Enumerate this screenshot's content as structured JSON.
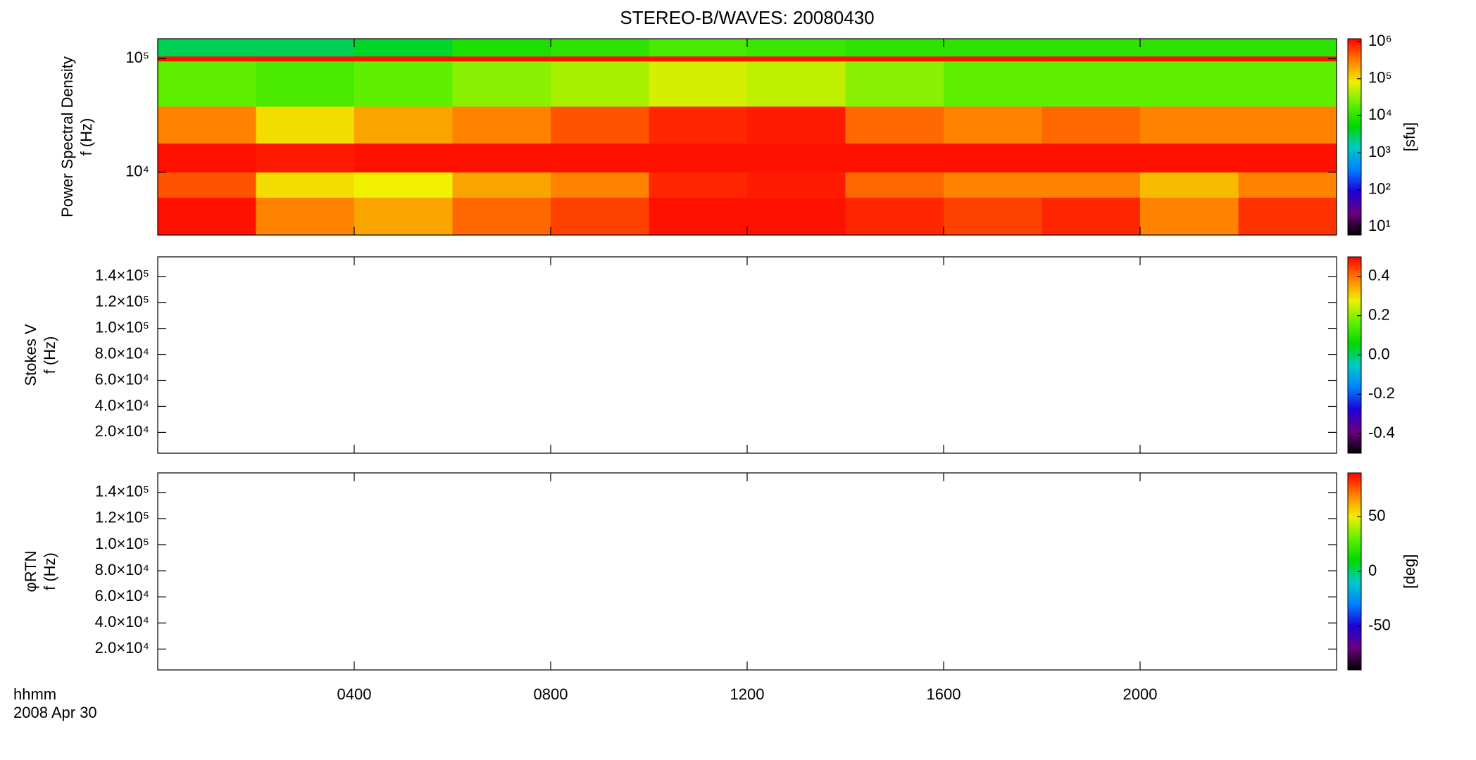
{
  "chart_data": [
    {
      "type": "heatmap",
      "title": "STEREO-B/WAVES: 20080430",
      "ylabel": [
        "Power Spectral Density",
        "f (Hz)"
      ],
      "ylim": [
        2800,
        150000
      ],
      "log_y": true,
      "yticks": [
        {
          "value": 10000,
          "label": "10⁴"
        },
        {
          "value": 100000,
          "label": "10⁵"
        }
      ],
      "colormap": [
        "#000000",
        "#6a0080",
        "#1e00d8",
        "#0080ff",
        "#00c8c8",
        "#00d800",
        "#60f000",
        "#f0f000",
        "#ff8000",
        "#ff0000"
      ],
      "colorbar": {
        "lim": [
          6,
          1200000
        ],
        "log": true,
        "label": "[sfu]",
        "ticks": [
          {
            "value": 10,
            "label": "10¹"
          },
          {
            "value": 100,
            "label": "10²"
          },
          {
            "value": 1000,
            "label": "10³"
          },
          {
            "value": 10000,
            "label": "10⁴"
          },
          {
            "value": 100000,
            "label": "10⁵"
          },
          {
            "value": 1000000,
            "label": "10⁶"
          }
        ]
      },
      "time_edges": [
        0,
        2,
        4,
        6,
        8,
        10,
        12,
        14,
        16,
        18,
        20,
        22,
        24
      ],
      "freq_edges": [
        2800,
        6000,
        10000,
        18000,
        38000,
        95000,
        105000,
        150000
      ],
      "z": [
        [
          1000000,
          300000,
          200000,
          400000,
          600000,
          1000000,
          1000000,
          800000,
          600000,
          800000,
          300000,
          700000
        ],
        [
          500000,
          100000,
          80000,
          200000,
          300000,
          800000,
          900000,
          400000,
          300000,
          300000,
          150000,
          300000
        ],
        [
          1000000,
          900000,
          1000000,
          1000000,
          1000000,
          1000000,
          1000000,
          1000000,
          1000000,
          1000000,
          1000000,
          1000000
        ],
        [
          300000,
          100000,
          200000,
          300000,
          500000,
          800000,
          900000,
          400000,
          300000,
          400000,
          300000,
          300000
        ],
        [
          20000,
          15000,
          20000,
          30000,
          40000,
          60000,
          50000,
          30000,
          20000,
          20000,
          20000,
          20000
        ],
        [
          1000000,
          1000000,
          1000000,
          1000000,
          1000000,
          1000000,
          1000000,
          1000000,
          1000000,
          1000000,
          1000000,
          1000000
        ],
        [
          3000,
          3000,
          4000,
          8000,
          10000,
          15000,
          12000,
          10000,
          10000,
          10000,
          10000,
          10000
        ]
      ]
    },
    {
      "type": "heatmap",
      "ylabel": [
        "Stokes V",
        "f (Hz)"
      ],
      "ylim": [
        4000,
        155000
      ],
      "log_y": false,
      "yticks": [
        {
          "value": 20000,
          "label": "2.0×10⁴"
        },
        {
          "value": 40000,
          "label": "4.0×10⁴"
        },
        {
          "value": 60000,
          "label": "6.0×10⁴"
        },
        {
          "value": 80000,
          "label": "8.0×10⁴"
        },
        {
          "value": 100000,
          "label": "1.0×10⁵"
        },
        {
          "value": 120000,
          "label": "1.2×10⁵"
        },
        {
          "value": 140000,
          "label": "1.4×10⁵"
        }
      ],
      "colormap": [
        "#000000",
        "#6a0080",
        "#1e00d8",
        "#0080ff",
        "#00c8c8",
        "#00d800",
        "#60f000",
        "#f0f000",
        "#ff8000",
        "#ff0000"
      ],
      "colorbar": {
        "lim": [
          -0.5,
          0.5
        ],
        "log": false,
        "ticks": [
          -0.4,
          -0.2,
          {
            "value": 0,
            "label": "0.0"
          },
          0.2,
          0.4
        ]
      }
    },
    {
      "type": "heatmap",
      "ylabel": [
        "φRTN",
        "f (Hz)"
      ],
      "ylim": [
        4000,
        155000
      ],
      "log_y": false,
      "yticks": [
        {
          "value": 20000,
          "label": "2.0×10⁴"
        },
        {
          "value": 40000,
          "label": "4.0×10⁴"
        },
        {
          "value": 60000,
          "label": "6.0×10⁴"
        },
        {
          "value": 80000,
          "label": "8.0×10⁴"
        },
        {
          "value": 100000,
          "label": "1.0×10⁵"
        },
        {
          "value": 120000,
          "label": "1.2×10⁵"
        },
        {
          "value": 140000,
          "label": "1.4×10⁵"
        }
      ],
      "colormap": [
        "#000000",
        "#6a0080",
        "#1e00d8",
        "#0080ff",
        "#00c8c8",
        "#00d800",
        "#60f000",
        "#f0f000",
        "#ff8000",
        "#ff0000"
      ],
      "colorbar": {
        "lim": [
          -90,
          90
        ],
        "log": false,
        "label": "[deg]",
        "ticks": [
          -50,
          0,
          50
        ]
      },
      "xlabel": "hhmm",
      "date": "2008 Apr 30",
      "xlim": [
        0,
        24
      ],
      "xticks": [
        {
          "value": 4,
          "label": "0400"
        },
        {
          "value": 8,
          "label": "0800"
        },
        {
          "value": 12,
          "label": "1200"
        },
        {
          "value": 16,
          "label": "1600"
        },
        {
          "value": 20,
          "label": "2000"
        }
      ]
    }
  ]
}
